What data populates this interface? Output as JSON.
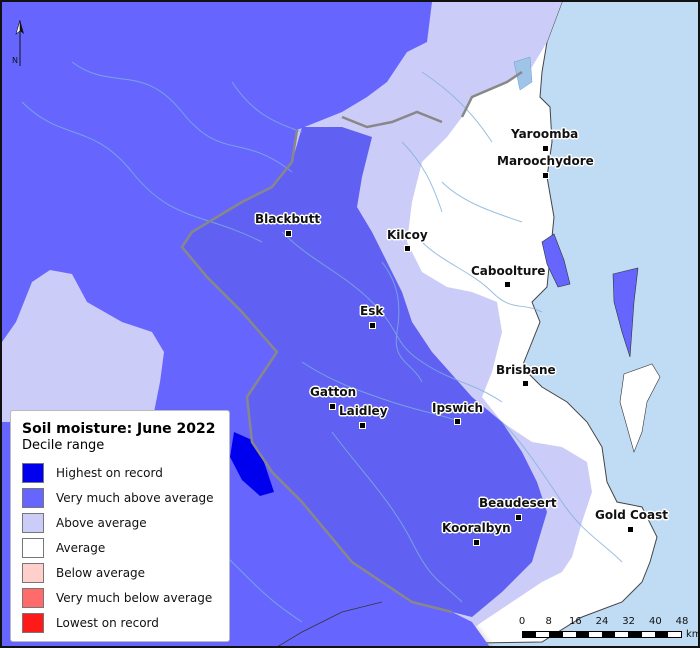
{
  "legend": {
    "title": "Soil moisture: June 2022",
    "subtitle": "Decile range",
    "items": [
      {
        "label": "Highest on record",
        "color": "#0000ee"
      },
      {
        "label": "Very much above average",
        "color": "#6666ff"
      },
      {
        "label": "Above average",
        "color": "#ccccf8"
      },
      {
        "label": "Average",
        "color": "#ffffff"
      },
      {
        "label": "Below average",
        "color": "#ffcfcc"
      },
      {
        "label": "Very much below average",
        "color": "#ff6b6b"
      },
      {
        "label": "Lowest on record",
        "color": "#ff1a1a"
      }
    ]
  },
  "towns": [
    {
      "name": "Yaroomba"
    },
    {
      "name": "Maroochydore"
    },
    {
      "name": "Blackbutt"
    },
    {
      "name": "Kilcoy"
    },
    {
      "name": "Caboolture"
    },
    {
      "name": "Esk"
    },
    {
      "name": "Brisbane"
    },
    {
      "name": "Gatton"
    },
    {
      "name": "Laidley"
    },
    {
      "name": "Ipswich"
    },
    {
      "name": "Beaudesert"
    },
    {
      "name": "Gold Coast"
    },
    {
      "name": "Kooralbyn"
    }
  ],
  "scale_bar": {
    "ticks": [
      "0",
      "8",
      "16",
      "24",
      "32",
      "40",
      "48"
    ],
    "unit": "km"
  },
  "north_arrow": {
    "label": "N"
  }
}
